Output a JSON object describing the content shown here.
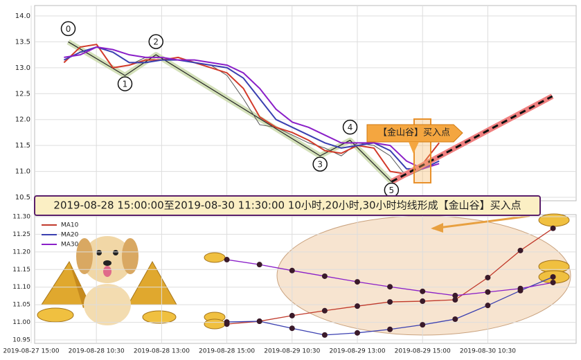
{
  "chart_data": [
    {
      "type": "line",
      "xlim": [
        0.1,
        16.7
      ],
      "ylim": [
        10.5,
        14.0
      ],
      "yticks": [
        10.5,
        {
          "value": 11.0,
          "label": "11.0"
        },
        11.5,
        {
          "value": 12.0,
          "label": "12.0"
        },
        12.5,
        {
          "value": 13.0,
          "label": "13.0"
        },
        13.5,
        {
          "value": 14.0,
          "label": "14.0"
        }
      ],
      "grid": true,
      "x": [
        1,
        1.5,
        2,
        2.5,
        3,
        3.5,
        4,
        4.5,
        5,
        5.5,
        6,
        6.5,
        7,
        7.5,
        8,
        8.5,
        9,
        9.5,
        10,
        10.5,
        11,
        11.5,
        12,
        12.5
      ],
      "series": [
        {
          "color": "#555555",
          "values": [
            13.1,
            13.4,
            13.45,
            13.0,
            13.05,
            13.2,
            13.2,
            13.15,
            13.1,
            13.05,
            12.85,
            12.4,
            11.9,
            11.85,
            11.7,
            11.55,
            11.45,
            11.3,
            11.55,
            11.5,
            11.3,
            10.9,
            11.05,
            11.2
          ]
        },
        {
          "color": "#d23a2a",
          "values": [
            13.1,
            13.4,
            13.45,
            13.0,
            13.05,
            13.15,
            13.15,
            13.2,
            13.1,
            13.0,
            12.9,
            12.6,
            12.05,
            11.85,
            11.75,
            11.6,
            11.4,
            11.35,
            11.5,
            11.45,
            11.0,
            10.95,
            11.15,
            11.55
          ]
        },
        {
          "color": "#3a3fb0",
          "values": [
            13.15,
            13.3,
            13.4,
            13.3,
            13.1,
            13.1,
            13.15,
            13.15,
            13.1,
            13.05,
            13.0,
            12.8,
            12.4,
            12.0,
            11.85,
            11.7,
            11.55,
            11.45,
            11.5,
            11.55,
            11.4,
            11.05,
            11.05,
            11.2
          ]
        },
        {
          "color": "#8a1fc8",
          "values": [
            13.2,
            13.25,
            13.4,
            13.35,
            13.25,
            13.2,
            13.2,
            13.15,
            13.15,
            13.1,
            13.05,
            12.9,
            12.6,
            12.2,
            11.95,
            11.85,
            11.7,
            11.55,
            11.55,
            11.55,
            11.5,
            11.2,
            11.05,
            11.15
          ]
        }
      ],
      "waves": {
        "x": [
          1.13,
          2.87,
          3.82,
          8.85,
          9.77,
          11.04
        ],
        "values": [
          13.5,
          12.85,
          13.25,
          11.3,
          11.6,
          10.8
        ],
        "labels": [
          "0",
          "1",
          "2",
          "3",
          "4",
          "5"
        ]
      },
      "projection": {
        "x": [
          11.04,
          15.97
        ],
        "values": [
          10.8,
          12.45
        ]
      },
      "annotation": "【金山谷】买入点"
    },
    {
      "type": "line",
      "title": "2019-08-28 15:00:00至2019-08-30 11:30:00 10小时,20小时,30小时均线形成【金山谷】买入点",
      "categories": [
        "2019-08-27 15:00",
        null,
        "2019-08-28 10:30",
        null,
        "2019-08-28 13:00",
        null,
        "2019-08-28 15:00",
        null,
        "2019-08-29 10:30",
        null,
        "2019-08-29 13:00",
        null,
        "2019-08-29 15:00",
        null,
        "2019-08-30 10:30",
        null,
        null
      ],
      "ylim": [
        10.95,
        11.3
      ],
      "yticks": [
        10.95,
        {
          "value": 11.0,
          "label": "11.00"
        },
        11.05,
        {
          "value": 11.1,
          "label": "11.10"
        },
        11.15,
        {
          "value": 11.2,
          "label": "11.20"
        },
        11.25,
        {
          "value": 11.3,
          "label": "11.30"
        }
      ],
      "grid": true,
      "series": [
        {
          "name": "MA10",
          "color": "#c0392b",
          "values": [
            null,
            null,
            null,
            null,
            null,
            null,
            10.995,
            11.003,
            11.019,
            11.033,
            11.046,
            11.058,
            11.06,
            11.064,
            11.127,
            11.204,
            11.267
          ]
        },
        {
          "name": "MA20",
          "color": "#3a3fb0",
          "values": [
            null,
            null,
            null,
            null,
            null,
            null,
            11.001,
            11.003,
            10.983,
            10.964,
            10.97,
            10.98,
            10.993,
            11.009,
            11.048,
            11.09,
            11.129
          ]
        },
        {
          "name": "MA30",
          "color": "#8a1fc8",
          "values": [
            null,
            null,
            null,
            null,
            null,
            null,
            11.178,
            11.164,
            11.147,
            11.131,
            11.115,
            11.101,
            11.088,
            11.076,
            11.086,
            11.096,
            11.113
          ]
        }
      ]
    }
  ]
}
